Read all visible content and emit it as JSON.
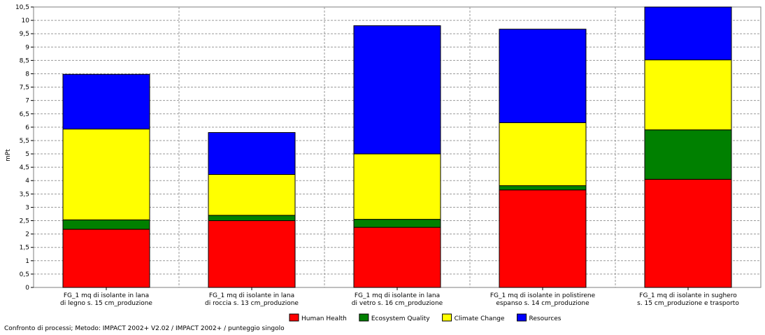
{
  "chart_data": {
    "type": "stacked-bar",
    "ylabel": "mPt",
    "ylim": [
      0,
      10.5
    ],
    "ytick_step": 0.5,
    "grid": true,
    "legend_position": "bottom",
    "categories": [
      [
        "FG_1 mq di isolante in lana",
        "di legno s. 15 cm_produzione"
      ],
      [
        "FG_1 mq di isolante in lana",
        "di roccia s. 13 cm_produzione"
      ],
      [
        "FG_1 mq di isolante in lana",
        "di vetro s. 16 cm_produzione"
      ],
      [
        "FG_1 mq di isolante in polistirene",
        "espanso s. 14 cm_produzione"
      ],
      [
        "FG_1 mq di isolante in sughero",
        "s. 15 cm_produzione e trasporto"
      ]
    ],
    "series": [
      {
        "name": "Human Health",
        "color": "#ff0000",
        "values": [
          2.18,
          2.5,
          2.25,
          3.65,
          4.05
        ]
      },
      {
        "name": "Ecosystem Quality",
        "color": "#008000",
        "values": [
          0.35,
          0.2,
          0.3,
          0.16,
          1.85
        ]
      },
      {
        "name": "Climate Change",
        "color": "#ffff00",
        "values": [
          3.4,
          1.53,
          2.45,
          2.36,
          2.62
        ]
      },
      {
        "name": "Resources",
        "color": "#0000ff",
        "values": [
          2.05,
          1.57,
          4.8,
          3.5,
          2.5
        ]
      }
    ]
  },
  "footer": "Confronto di processi; Metodo: IMPACT 2002+ V2.02 / IMPACT 2002+ / punteggio singolo"
}
